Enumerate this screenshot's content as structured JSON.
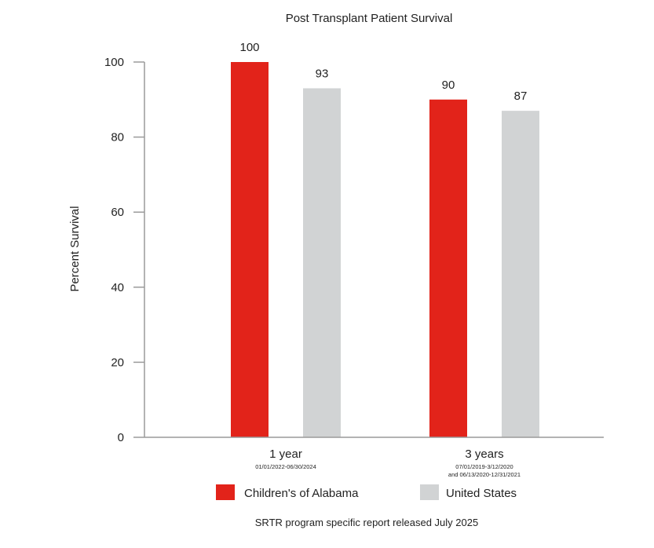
{
  "chart_data": {
    "type": "bar",
    "title": "Post Transplant Patient Survival",
    "xlabel": "",
    "ylabel": "Percent Survival",
    "ylim": [
      0,
      100
    ],
    "yticks": [
      "0",
      "20",
      "40",
      "60",
      "80",
      "100"
    ],
    "categories": [
      "1 year",
      "3 years"
    ],
    "category_sublabels": [
      [
        "01/01/2022-06/30/2024"
      ],
      [
        "07/01/2019-3/12/2020",
        "and 06/13/2020-12/31/2021"
      ]
    ],
    "series": [
      {
        "name": "Children's of Alabama",
        "values": [
          100,
          90
        ],
        "color": "#e2231a"
      },
      {
        "name": "United States",
        "values": [
          93,
          87
        ],
        "color": "#d1d3d4"
      }
    ],
    "data_labels": [
      [
        "100",
        "90"
      ],
      [
        "93",
        "87"
      ]
    ],
    "grid": false,
    "legend_position": "bottom",
    "footnote": "SRTR program specific report released July 2025"
  }
}
